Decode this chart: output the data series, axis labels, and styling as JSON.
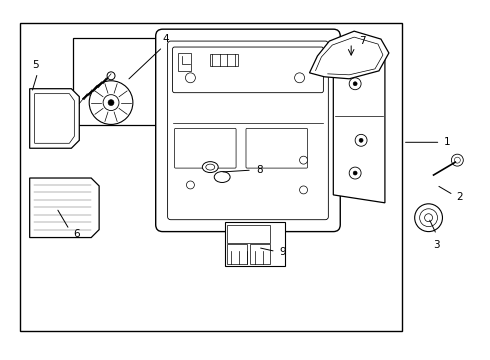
{
  "bg_color": "#ffffff",
  "line_color": "#000000",
  "text_color": "#000000",
  "figsize": [
    4.9,
    3.6
  ],
  "dpi": 100
}
